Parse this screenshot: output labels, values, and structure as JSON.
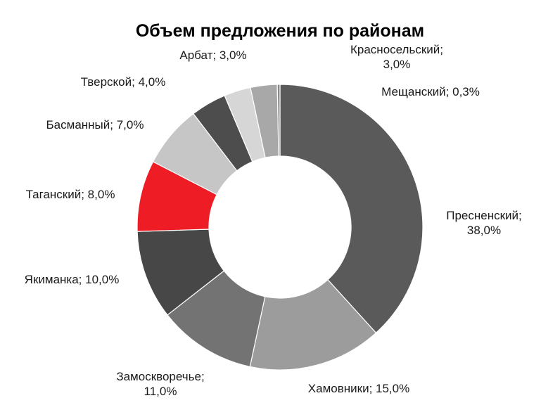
{
  "chart_data": {
    "type": "pie",
    "donut": true,
    "title": "Объем предложения по районам",
    "legend": "none",
    "slices": [
      {
        "label": "Пресненский",
        "value": 38.0,
        "value_label": "38,0%",
        "color": "#5a5a5a"
      },
      {
        "label": "Хамовники",
        "value": 15.0,
        "value_label": "15,0%",
        "color": "#9c9c9c"
      },
      {
        "label": "Замоскворечье",
        "value": 11.0,
        "value_label": "11,0%",
        "color": "#737373"
      },
      {
        "label": "Якиманка",
        "value": 10.0,
        "value_label": "10,0%",
        "color": "#474747"
      },
      {
        "label": "Таганский",
        "value": 8.0,
        "value_label": "8,0%",
        "color": "#ee1c25"
      },
      {
        "label": "Басманный",
        "value": 7.0,
        "value_label": "7,0%",
        "color": "#c6c6c6"
      },
      {
        "label": "Тверской",
        "value": 4.0,
        "value_label": "4,0%",
        "color": "#4d4d4d"
      },
      {
        "label": "Арбат",
        "value": 3.0,
        "value_label": "3,0%",
        "color": "#d6d6d6"
      },
      {
        "label": "Красносельский",
        "value": 3.0,
        "value_label": "3,0%",
        "color": "#a8a8a8"
      },
      {
        "label": "Мещанский",
        "value": 0.3,
        "value_label": "0,3%",
        "color": "#8a8a8a"
      }
    ]
  }
}
